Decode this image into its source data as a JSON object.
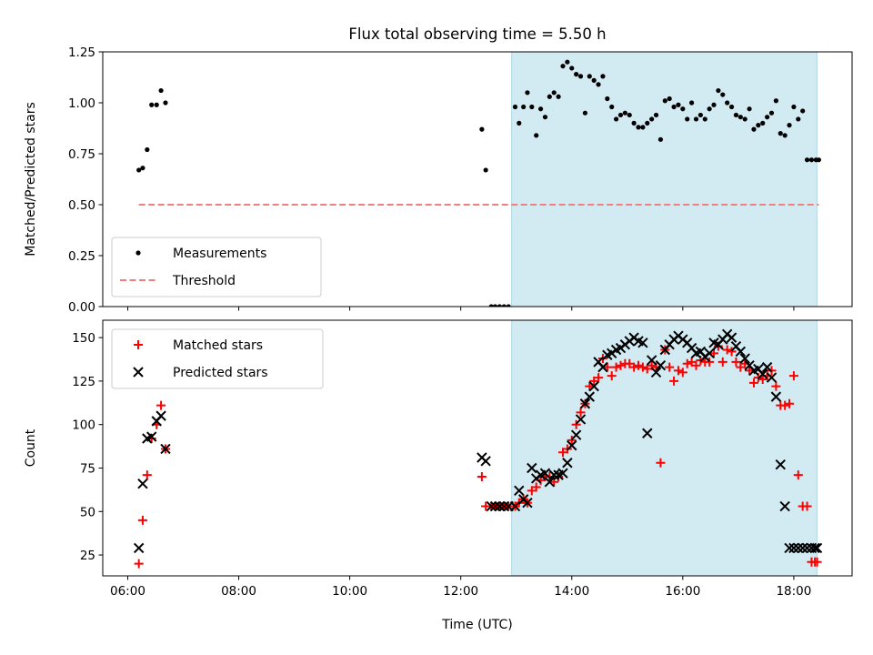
{
  "title": "Flux total observing time = 5.50 h",
  "chart_data": [
    {
      "type": "scatter",
      "ylabel": "Matched/Predicted stars",
      "xlabel": "",
      "xlim": [
        5.55,
        19.05
      ],
      "ylim": [
        0,
        1.25
      ],
      "yticks": [
        "0.00",
        "0.25",
        "0.50",
        "0.75",
        "1.00",
        "1.25"
      ],
      "legend": {
        "position": "lower-left",
        "entries": [
          "Measurements",
          "Threshold"
        ]
      },
      "observing_window": {
        "start": "12:55",
        "end": "18:25"
      },
      "series": [
        {
          "name": "Measurements",
          "color": "#000000",
          "marker": "dot",
          "x": [
            6.2,
            6.27,
            6.35,
            6.43,
            6.52,
            6.6,
            6.68,
            12.38,
            12.45,
            12.55,
            12.62,
            12.7,
            12.78,
            12.86,
            12.98,
            13.05,
            13.13,
            13.2,
            13.28,
            13.36,
            13.44,
            13.52,
            13.6,
            13.68,
            13.76,
            13.84,
            13.92,
            14.0,
            14.08,
            14.16,
            14.24,
            14.32,
            14.4,
            14.48,
            14.56,
            14.64,
            14.72,
            14.8,
            14.88,
            14.96,
            15.04,
            15.12,
            15.2,
            15.28,
            15.36,
            15.44,
            15.52,
            15.6,
            15.68,
            15.76,
            15.84,
            15.92,
            16.0,
            16.08,
            16.16,
            16.24,
            16.32,
            16.4,
            16.48,
            16.56,
            16.64,
            16.72,
            16.8,
            16.88,
            16.96,
            17.04,
            17.12,
            17.2,
            17.28,
            17.36,
            17.44,
            17.52,
            17.6,
            17.68,
            17.76,
            17.84,
            17.92,
            18.0,
            18.08,
            18.16,
            18.24,
            18.32,
            18.4,
            18.45
          ],
          "y": [
            0.67,
            0.68,
            0.77,
            0.99,
            0.99,
            1.06,
            1.0,
            0.87,
            0.67,
            0.0,
            0.0,
            0.0,
            0.0,
            0.0,
            0.98,
            0.9,
            0.98,
            1.05,
            0.98,
            0.84,
            0.97,
            0.93,
            1.03,
            1.05,
            1.03,
            1.18,
            1.2,
            1.17,
            1.14,
            1.13,
            0.95,
            1.13,
            1.11,
            1.09,
            1.13,
            1.02,
            0.98,
            0.92,
            0.94,
            0.95,
            0.94,
            0.9,
            0.88,
            0.88,
            0.9,
            0.92,
            0.94,
            0.82,
            1.01,
            1.02,
            0.98,
            0.99,
            0.97,
            0.92,
            1.0,
            0.92,
            0.94,
            0.92,
            0.97,
            0.99,
            1.06,
            1.04,
            1.0,
            0.98,
            0.94,
            0.93,
            0.92,
            0.97,
            0.87,
            0.89,
            0.9,
            0.93,
            0.95,
            1.01,
            0.85,
            0.84,
            0.89,
            0.98,
            0.92,
            0.96,
            0.72,
            0.72,
            0.72,
            0.72
          ]
        },
        {
          "name": "Threshold",
          "color": "#f08080",
          "style": "dashed",
          "x": [
            6.2,
            18.45
          ],
          "y": [
            0.5,
            0.5
          ]
        }
      ]
    },
    {
      "type": "scatter",
      "ylabel": "Count",
      "xlabel": "Time (UTC)",
      "xlim": [
        5.55,
        19.05
      ],
      "ylim": [
        13,
        160
      ],
      "yticks": [
        "25",
        "50",
        "75",
        "100",
        "125",
        "150"
      ],
      "xticks": [
        "06:00",
        "08:00",
        "10:00",
        "12:00",
        "14:00",
        "16:00",
        "18:00"
      ],
      "legend": {
        "position": "upper-left",
        "entries": [
          "Matched stars",
          "Predicted stars"
        ]
      },
      "observing_window": {
        "start": "12:55",
        "end": "18:25"
      },
      "series": [
        {
          "name": "Matched stars",
          "color": "#ff0000",
          "marker": "plus",
          "x": [
            6.2,
            6.27,
            6.35,
            6.43,
            6.52,
            6.6,
            6.68,
            12.38,
            12.45,
            12.55,
            12.62,
            12.7,
            12.78,
            12.86,
            12.98,
            13.05,
            13.13,
            13.2,
            13.28,
            13.36,
            13.44,
            13.52,
            13.6,
            13.68,
            13.76,
            13.84,
            13.92,
            14.0,
            14.08,
            14.16,
            14.24,
            14.32,
            14.4,
            14.48,
            14.56,
            14.64,
            14.72,
            14.8,
            14.88,
            14.96,
            15.04,
            15.12,
            15.2,
            15.28,
            15.36,
            15.44,
            15.52,
            15.6,
            15.68,
            15.76,
            15.84,
            15.92,
            16.0,
            16.08,
            16.16,
            16.24,
            16.32,
            16.4,
            16.48,
            16.56,
            16.64,
            16.72,
            16.8,
            16.88,
            16.96,
            17.04,
            17.12,
            17.2,
            17.28,
            17.36,
            17.44,
            17.52,
            17.6,
            17.68,
            17.76,
            17.84,
            17.92,
            18.0,
            18.08,
            18.16,
            18.24,
            18.32,
            18.38,
            18.42
          ],
          "y": [
            20,
            45,
            71,
            92,
            100,
            111,
            86,
            70,
            53,
            53,
            53,
            53,
            53,
            53,
            53,
            55,
            57,
            55,
            62,
            64,
            68,
            70,
            70,
            67,
            70,
            84,
            86,
            91,
            100,
            107,
            112,
            122,
            125,
            127,
            138,
            133,
            128,
            133,
            134,
            135,
            135,
            133,
            134,
            133,
            132,
            134,
            133,
            78,
            143,
            133,
            125,
            131,
            130,
            135,
            136,
            134,
            137,
            136,
            136,
            141,
            145,
            136,
            143,
            142,
            136,
            133,
            135,
            131,
            124,
            127,
            126,
            128,
            131,
            122,
            111,
            111,
            112,
            128,
            71,
            53,
            53,
            21,
            21,
            21
          ]
        },
        {
          "name": "Predicted stars",
          "color": "#000000",
          "marker": "cross",
          "x": [
            6.2,
            6.27,
            6.35,
            6.43,
            6.52,
            6.6,
            6.68,
            12.38,
            12.45,
            12.55,
            12.62,
            12.7,
            12.78,
            12.86,
            12.98,
            13.05,
            13.13,
            13.2,
            13.28,
            13.36,
            13.44,
            13.52,
            13.6,
            13.68,
            13.76,
            13.84,
            13.92,
            14.0,
            14.08,
            14.16,
            14.24,
            14.32,
            14.4,
            14.48,
            14.56,
            14.64,
            14.72,
            14.8,
            14.88,
            14.96,
            15.04,
            15.12,
            15.2,
            15.28,
            15.36,
            15.44,
            15.52,
            15.6,
            15.68,
            15.76,
            15.84,
            15.92,
            16.0,
            16.08,
            16.16,
            16.24,
            16.32,
            16.4,
            16.48,
            16.56,
            16.64,
            16.72,
            16.8,
            16.88,
            16.96,
            17.04,
            17.12,
            17.2,
            17.28,
            17.36,
            17.44,
            17.52,
            17.6,
            17.68,
            17.76,
            17.84,
            17.92,
            18.0,
            18.08,
            18.16,
            18.24,
            18.32,
            18.38,
            18.42
          ],
          "y": [
            29,
            66,
            92,
            93,
            102,
            105,
            86,
            81,
            79,
            53,
            53,
            53,
            53,
            53,
            53,
            62,
            57,
            55,
            75,
            69,
            71,
            72,
            67,
            71,
            71,
            72,
            78,
            88,
            94,
            103,
            112,
            116,
            122,
            136,
            133,
            140,
            141,
            143,
            144,
            146,
            148,
            150,
            148,
            147,
            95,
            137,
            130,
            134,
            143,
            146,
            149,
            151,
            149,
            147,
            144,
            141,
            142,
            139,
            141,
            147,
            146,
            149,
            152,
            150,
            145,
            142,
            138,
            134,
            131,
            132,
            129,
            133,
            127,
            116,
            77,
            53,
            29,
            29,
            29,
            29,
            29,
            29,
            29,
            29
          ]
        }
      ]
    }
  ]
}
